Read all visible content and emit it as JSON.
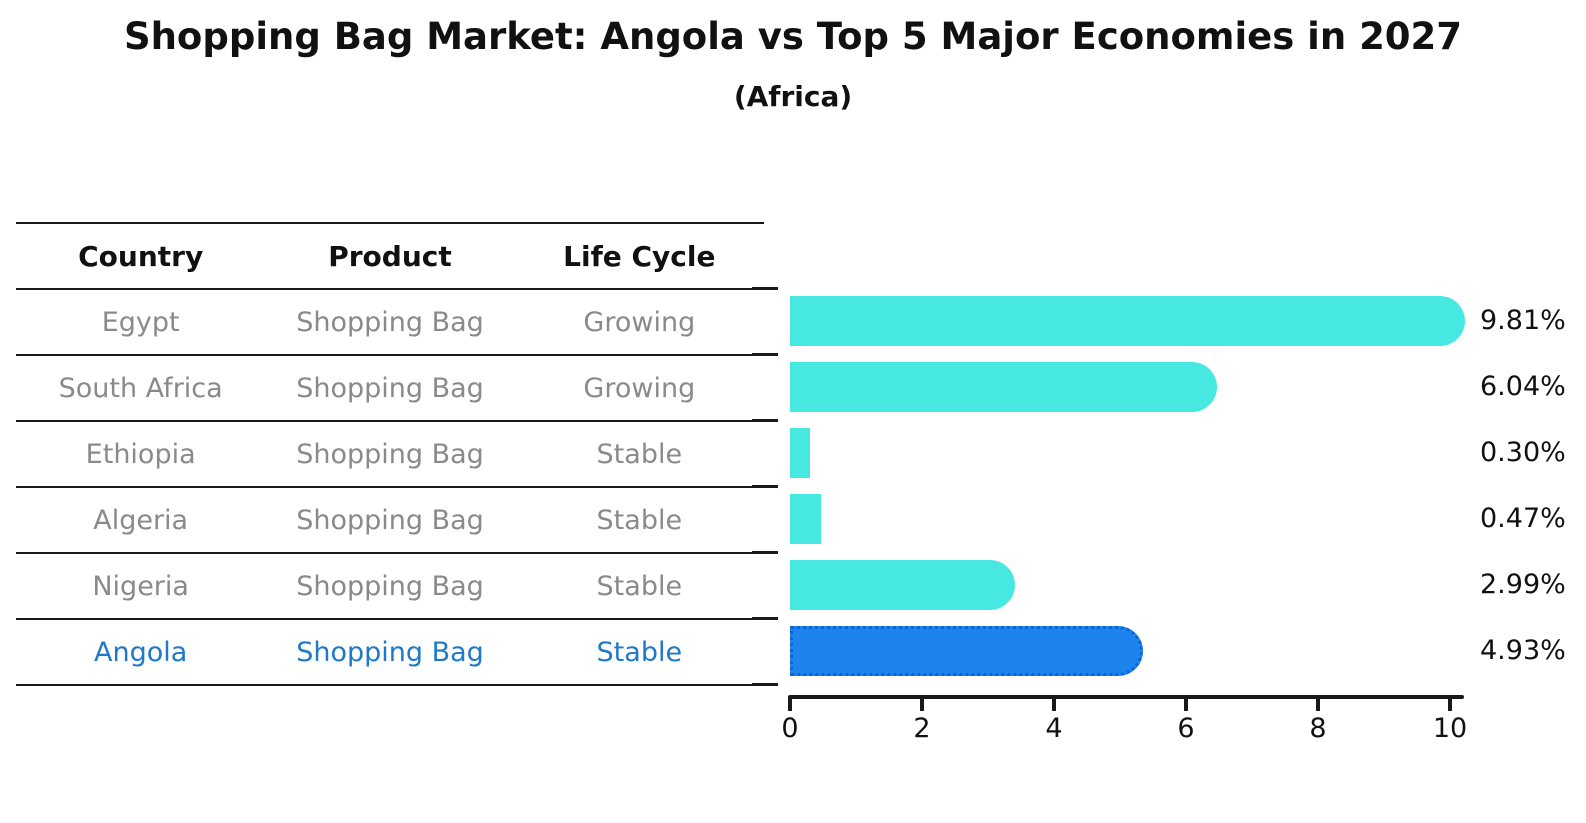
{
  "chart_data": {
    "type": "bar",
    "orientation": "horizontal",
    "title": "Shopping Bag Market: Angola vs Top 5 Major Economies in 2027",
    "subtitle": "(Africa)",
    "categories": [
      "Egypt",
      "South Africa",
      "Ethiopia",
      "Algeria",
      "Nigeria",
      "Angola"
    ],
    "values": [
      9.81,
      6.04,
      0.3,
      0.47,
      2.99,
      4.93
    ],
    "value_labels": [
      "9.81%",
      "6.04%",
      "0.30%",
      "0.47%",
      "2.99%",
      "4.93%"
    ],
    "x_ticks": [
      0,
      2,
      4,
      6,
      8,
      10
    ],
    "xlim": [
      0,
      10.2
    ],
    "xlabel": "",
    "ylabel": "",
    "grid": false,
    "legend": null,
    "bar_color": "#47E8E2",
    "highlight_index": 5,
    "highlight_bar_color": "#1C84EC",
    "highlight_border_color": "#0F63D8",
    "highlight_text_color": "#1F78C8",
    "muted_text_color": "#8A8A8A"
  },
  "table": {
    "headers": [
      "Country",
      "Product",
      "Life Cycle"
    ],
    "rows": [
      {
        "country": "Egypt",
        "product": "Shopping Bag",
        "life_cycle": "Growing",
        "highlight": false
      },
      {
        "country": "South Africa",
        "product": "Shopping Bag",
        "life_cycle": "Growing",
        "highlight": false
      },
      {
        "country": "Ethiopia",
        "product": "Shopping Bag",
        "life_cycle": "Stable",
        "highlight": false
      },
      {
        "country": "Algeria",
        "product": "Shopping Bag",
        "life_cycle": "Stable",
        "highlight": false
      },
      {
        "country": "Nigeria",
        "product": "Shopping Bag",
        "life_cycle": "Stable",
        "highlight": false
      },
      {
        "country": "Angola",
        "product": "Shopping Bag",
        "life_cycle": "Stable",
        "highlight": true
      }
    ]
  }
}
